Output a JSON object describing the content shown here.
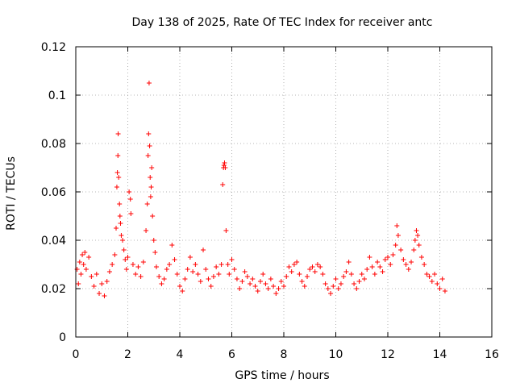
{
  "chart_data": {
    "type": "scatter",
    "title": "Day 138 of 2025, Rate Of TEC Index for receiver antc",
    "xlabel": "GPS time / hours",
    "ylabel": "ROTI / TECUs",
    "xlim": [
      0,
      16
    ],
    "ylim": [
      0,
      0.12
    ],
    "x_ticks": [
      0,
      2,
      4,
      6,
      8,
      10,
      12,
      14,
      16
    ],
    "x_tick_labels": [
      "0",
      "2",
      "4",
      "6",
      "8",
      "10",
      "12",
      "14",
      "16"
    ],
    "y_ticks": [
      0,
      0.02,
      0.04,
      0.06,
      0.08,
      0.1,
      0.12
    ],
    "y_tick_labels": [
      "0",
      "0.02",
      "0.04",
      "0.06",
      "0.08",
      "0.1",
      "0.12"
    ],
    "grid": true,
    "marker": "plus",
    "marker_color": "#ff0000",
    "series": [
      {
        "name": "ROTI",
        "points": [
          [
            0.05,
            0.028
          ],
          [
            0.1,
            0.022
          ],
          [
            0.15,
            0.031
          ],
          [
            0.2,
            0.026
          ],
          [
            0.25,
            0.034
          ],
          [
            0.3,
            0.03
          ],
          [
            0.35,
            0.035
          ],
          [
            0.4,
            0.028
          ],
          [
            0.5,
            0.033
          ],
          [
            0.6,
            0.025
          ],
          [
            0.7,
            0.021
          ],
          [
            0.8,
            0.026
          ],
          [
            0.9,
            0.018
          ],
          [
            1.0,
            0.022
          ],
          [
            1.1,
            0.017
          ],
          [
            1.2,
            0.023
          ],
          [
            1.3,
            0.027
          ],
          [
            1.4,
            0.03
          ],
          [
            1.5,
            0.034
          ],
          [
            1.55,
            0.045
          ],
          [
            1.58,
            0.062
          ],
          [
            1.6,
            0.068
          ],
          [
            1.62,
            0.075
          ],
          [
            1.63,
            0.084
          ],
          [
            1.65,
            0.066
          ],
          [
            1.68,
            0.055
          ],
          [
            1.7,
            0.05
          ],
          [
            1.72,
            0.047
          ],
          [
            1.75,
            0.042
          ],
          [
            1.8,
            0.04
          ],
          [
            1.85,
            0.036
          ],
          [
            1.9,
            0.032
          ],
          [
            1.95,
            0.028
          ],
          [
            2.0,
            0.033
          ],
          [
            2.05,
            0.06
          ],
          [
            2.1,
            0.057
          ],
          [
            2.12,
            0.051
          ],
          [
            2.2,
            0.03
          ],
          [
            2.3,
            0.026
          ],
          [
            2.4,
            0.029
          ],
          [
            2.5,
            0.025
          ],
          [
            2.6,
            0.031
          ],
          [
            2.7,
            0.044
          ],
          [
            2.75,
            0.055
          ],
          [
            2.78,
            0.075
          ],
          [
            2.8,
            0.084
          ],
          [
            2.82,
            0.105
          ],
          [
            2.84,
            0.079
          ],
          [
            2.86,
            0.066
          ],
          [
            2.88,
            0.058
          ],
          [
            2.9,
            0.062
          ],
          [
            2.92,
            0.07
          ],
          [
            2.95,
            0.05
          ],
          [
            3.0,
            0.04
          ],
          [
            3.05,
            0.035
          ],
          [
            3.1,
            0.029
          ],
          [
            3.2,
            0.025
          ],
          [
            3.3,
            0.022
          ],
          [
            3.4,
            0.024
          ],
          [
            3.5,
            0.028
          ],
          [
            3.6,
            0.03
          ],
          [
            3.7,
            0.038
          ],
          [
            3.8,
            0.032
          ],
          [
            3.9,
            0.026
          ],
          [
            4.0,
            0.021
          ],
          [
            4.1,
            0.019
          ],
          [
            4.2,
            0.024
          ],
          [
            4.3,
            0.028
          ],
          [
            4.4,
            0.033
          ],
          [
            4.5,
            0.027
          ],
          [
            4.6,
            0.03
          ],
          [
            4.7,
            0.026
          ],
          [
            4.8,
            0.023
          ],
          [
            4.9,
            0.036
          ],
          [
            5.0,
            0.028
          ],
          [
            5.1,
            0.024
          ],
          [
            5.2,
            0.021
          ],
          [
            5.3,
            0.025
          ],
          [
            5.4,
            0.029
          ],
          [
            5.5,
            0.026
          ],
          [
            5.6,
            0.03
          ],
          [
            5.65,
            0.063
          ],
          [
            5.68,
            0.07
          ],
          [
            5.7,
            0.071
          ],
          [
            5.72,
            0.072
          ],
          [
            5.75,
            0.07
          ],
          [
            5.78,
            0.044
          ],
          [
            5.85,
            0.03
          ],
          [
            5.9,
            0.026
          ],
          [
            6.0,
            0.032
          ],
          [
            6.1,
            0.028
          ],
          [
            6.2,
            0.024
          ],
          [
            6.3,
            0.02
          ],
          [
            6.4,
            0.023
          ],
          [
            6.5,
            0.027
          ],
          [
            6.6,
            0.025
          ],
          [
            6.7,
            0.022
          ],
          [
            6.8,
            0.024
          ],
          [
            6.9,
            0.021
          ],
          [
            7.0,
            0.019
          ],
          [
            7.1,
            0.023
          ],
          [
            7.2,
            0.026
          ],
          [
            7.3,
            0.022
          ],
          [
            7.4,
            0.02
          ],
          [
            7.5,
            0.024
          ],
          [
            7.6,
            0.021
          ],
          [
            7.7,
            0.018
          ],
          [
            7.8,
            0.02
          ],
          [
            7.9,
            0.023
          ],
          [
            8.0,
            0.021
          ],
          [
            8.1,
            0.025
          ],
          [
            8.2,
            0.029
          ],
          [
            8.3,
            0.027
          ],
          [
            8.4,
            0.03
          ],
          [
            8.5,
            0.031
          ],
          [
            8.6,
            0.026
          ],
          [
            8.7,
            0.023
          ],
          [
            8.8,
            0.021
          ],
          [
            8.9,
            0.025
          ],
          [
            9.0,
            0.028
          ],
          [
            9.1,
            0.029
          ],
          [
            9.2,
            0.027
          ],
          [
            9.3,
            0.03
          ],
          [
            9.4,
            0.029
          ],
          [
            9.5,
            0.026
          ],
          [
            9.6,
            0.022
          ],
          [
            9.7,
            0.02
          ],
          [
            9.8,
            0.018
          ],
          [
            9.9,
            0.021
          ],
          [
            10.0,
            0.024
          ],
          [
            10.1,
            0.02
          ],
          [
            10.2,
            0.022
          ],
          [
            10.3,
            0.025
          ],
          [
            10.4,
            0.027
          ],
          [
            10.5,
            0.031
          ],
          [
            10.6,
            0.026
          ],
          [
            10.7,
            0.022
          ],
          [
            10.8,
            0.02
          ],
          [
            10.9,
            0.023
          ],
          [
            11.0,
            0.026
          ],
          [
            11.1,
            0.024
          ],
          [
            11.2,
            0.028
          ],
          [
            11.3,
            0.033
          ],
          [
            11.4,
            0.029
          ],
          [
            11.5,
            0.026
          ],
          [
            11.6,
            0.031
          ],
          [
            11.7,
            0.029
          ],
          [
            11.8,
            0.027
          ],
          [
            11.9,
            0.032
          ],
          [
            12.0,
            0.033
          ],
          [
            12.1,
            0.03
          ],
          [
            12.2,
            0.034
          ],
          [
            12.3,
            0.038
          ],
          [
            12.35,
            0.046
          ],
          [
            12.4,
            0.042
          ],
          [
            12.5,
            0.036
          ],
          [
            12.6,
            0.032
          ],
          [
            12.7,
            0.03
          ],
          [
            12.8,
            0.028
          ],
          [
            12.9,
            0.031
          ],
          [
            13.0,
            0.036
          ],
          [
            13.05,
            0.04
          ],
          [
            13.1,
            0.044
          ],
          [
            13.15,
            0.042
          ],
          [
            13.2,
            0.038
          ],
          [
            13.3,
            0.033
          ],
          [
            13.4,
            0.03
          ],
          [
            13.5,
            0.026
          ],
          [
            13.6,
            0.025
          ],
          [
            13.7,
            0.023
          ],
          [
            13.8,
            0.026
          ],
          [
            13.9,
            0.022
          ],
          [
            14.0,
            0.02
          ],
          [
            14.1,
            0.024
          ],
          [
            14.2,
            0.019
          ]
        ]
      }
    ]
  }
}
